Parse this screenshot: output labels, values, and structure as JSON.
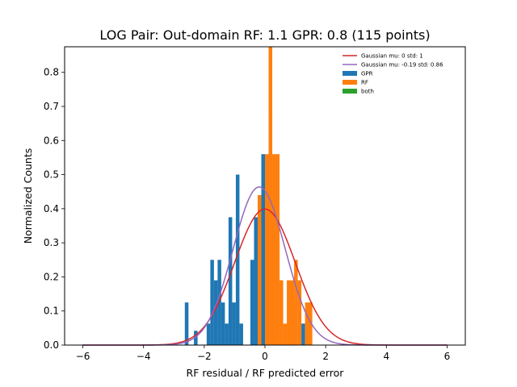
{
  "chart_data": {
    "type": "histogram",
    "title": "LOG Pair: Out-domain RF: 1.1 GPR: 0.8 (115 points)",
    "xlabel": "RF residual / RF predicted error",
    "ylabel": "Normalized Counts",
    "xlim": [
      -6.6,
      6.6
    ],
    "ylim": [
      0,
      0.875
    ],
    "xticks": [
      -6,
      -4,
      -2,
      0,
      2,
      4,
      6
    ],
    "xtick_labels": [
      "−6",
      "−4",
      "−2",
      "0",
      "2",
      "4",
      "6"
    ],
    "yticks": [
      0,
      0.1,
      0.2,
      0.3,
      0.4,
      0.5,
      0.6,
      0.7,
      0.8
    ],
    "ytick_labels": [
      "0.0",
      "0.1",
      "0.2",
      "0.3",
      "0.4",
      "0.5",
      "0.6",
      "0.7",
      "0.8"
    ],
    "grid": false,
    "legend_position": "top-right",
    "legend": [
      {
        "label": "Gaussian mu: 0 std: 1",
        "kind": "line",
        "color": "#d62728"
      },
      {
        "label": "Gaussian mu: -0.19 std: 0.86",
        "kind": "line",
        "color": "#9467bd"
      },
      {
        "label": "GPR",
        "kind": "patch",
        "color": "#1f77b4"
      },
      {
        "label": "RF",
        "kind": "patch",
        "color": "#ff7f0e"
      },
      {
        "label": "both",
        "kind": "patch",
        "color": "#2ca02c"
      }
    ],
    "curves": [
      {
        "name": "Gaussian mu: 0 std: 1",
        "mu": 0,
        "sigma": 1,
        "x_range": [
          -6,
          6
        ],
        "color": "#d62728"
      },
      {
        "name": "Gaussian mu: -0.19 std: 0.86",
        "mu": -0.19,
        "sigma": 0.86,
        "x_range": [
          -6,
          6
        ],
        "color": "#9467bd"
      }
    ],
    "series": [
      {
        "name": "GPR",
        "color": "#1f77b4",
        "bins": [
          {
            "x0": -2.64,
            "x1": -2.52,
            "y": 0.125
          },
          {
            "x0": -2.34,
            "x1": -2.22,
            "y": 0.042
          },
          {
            "x0": -1.92,
            "x1": -1.8,
            "y": 0.063
          },
          {
            "x0": -1.8,
            "x1": -1.68,
            "y": 0.25
          },
          {
            "x0": -1.68,
            "x1": -1.56,
            "y": 0.19
          },
          {
            "x0": -1.56,
            "x1": -1.44,
            "y": 0.25
          },
          {
            "x0": -1.44,
            "x1": -1.32,
            "y": 0.125
          },
          {
            "x0": -1.32,
            "x1": -1.2,
            "y": 0.063
          },
          {
            "x0": -1.2,
            "x1": -1.08,
            "y": 0.375
          },
          {
            "x0": -1.08,
            "x1": -0.96,
            "y": 0.125
          },
          {
            "x0": -0.96,
            "x1": -0.84,
            "y": 0.5
          },
          {
            "x0": -0.84,
            "x1": -0.72,
            "y": 0.063
          },
          {
            "x0": -0.48,
            "x1": -0.36,
            "y": 0.25
          },
          {
            "x0": -0.36,
            "x1": -0.24,
            "y": 0.375
          },
          {
            "x0": -0.24,
            "x1": -0.12,
            "y": 0.4
          },
          {
            "x0": -0.12,
            "x1": 0.0,
            "y": 0.56
          },
          {
            "x0": 0.0,
            "x1": 0.12,
            "y": 0.5
          },
          {
            "x0": 0.12,
            "x1": 0.24,
            "y": 0.69
          },
          {
            "x0": 0.24,
            "x1": 0.36,
            "y": 0.375
          },
          {
            "x0": 0.36,
            "x1": 0.48,
            "y": 0.31
          },
          {
            "x0": 0.96,
            "x1": 1.08,
            "y": 0.125
          },
          {
            "x0": 1.2,
            "x1": 1.32,
            "y": 0.063
          }
        ]
      },
      {
        "name": "RF",
        "color": "#ff7f0e",
        "bins": [
          {
            "x0": -0.24,
            "x1": -0.12,
            "y": 0.44
          },
          {
            "x0": 0.0,
            "x1": 0.12,
            "y": 0.56
          },
          {
            "x0": 0.12,
            "x1": 0.24,
            "y": 0.875
          },
          {
            "x0": 0.24,
            "x1": 0.48,
            "y": 0.56
          },
          {
            "x0": 0.48,
            "x1": 0.6,
            "y": 0.19
          },
          {
            "x0": 0.6,
            "x1": 0.72,
            "y": 0.063
          },
          {
            "x0": 0.72,
            "x1": 0.96,
            "y": 0.19
          },
          {
            "x0": 0.96,
            "x1": 1.08,
            "y": 0.25
          },
          {
            "x0": 1.08,
            "x1": 1.2,
            "y": 0.19
          },
          {
            "x0": 1.32,
            "x1": 1.56,
            "y": 0.125
          }
        ]
      },
      {
        "name": "both",
        "color": "#2ca02c",
        "bins": []
      }
    ]
  }
}
